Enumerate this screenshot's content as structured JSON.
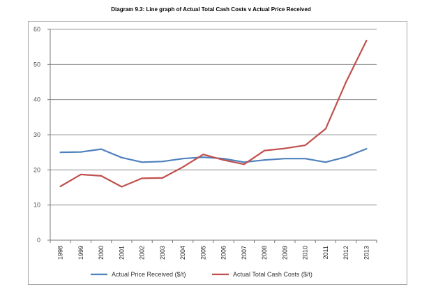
{
  "chart_data": {
    "type": "line",
    "title": "Diagram 9.3: Line graph of Actual Total Cash Costs v Actual Price Received",
    "xlabel": "",
    "ylabel": "",
    "x": [
      "1998",
      "1999",
      "2000",
      "2001",
      "2002",
      "2003",
      "2004",
      "2005",
      "2006",
      "2007",
      "2008",
      "2009",
      "2010",
      "2011",
      "2012",
      "2013"
    ],
    "ylim": [
      0,
      60
    ],
    "yticks": [
      0,
      10,
      20,
      30,
      40,
      50,
      60
    ],
    "grid": true,
    "legend_position": "bottom",
    "series": [
      {
        "name": "Actual Price Received ($/t)",
        "color": "#4f81bd",
        "values": [
          25.0,
          25.1,
          25.9,
          23.5,
          22.2,
          22.4,
          23.2,
          23.6,
          23.2,
          22.2,
          22.8,
          23.2,
          23.2,
          22.2,
          23.7,
          26.0
        ]
      },
      {
        "name": "Actual Total Cash Costs ($/t)",
        "color": "#c0504d",
        "values": [
          15.3,
          18.7,
          18.3,
          15.2,
          17.6,
          17.7,
          20.8,
          24.4,
          22.8,
          21.6,
          25.5,
          26.1,
          27.0,
          31.7,
          45.0,
          56.8
        ]
      }
    ]
  }
}
